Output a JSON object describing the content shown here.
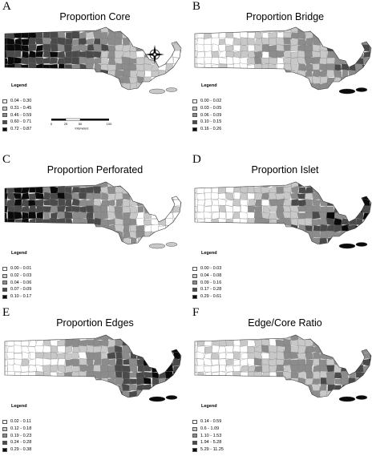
{
  "panels": [
    {
      "letter": "A",
      "title": "Proportion Core",
      "legend_title": "Legend",
      "classes": [
        "0.04 - 0.30",
        "0.31 - 0.45",
        "0.46 - 0.59",
        "0.60 - 0.71",
        "0.72 - 0.87"
      ],
      "pattern": "west-heavy",
      "scale_label": "Kilometers",
      "scale_ticks": [
        "0",
        "25",
        "50",
        "",
        "100"
      ]
    },
    {
      "letter": "B",
      "title": "Proportion Bridge",
      "legend_title": "Legend",
      "classes": [
        "0.00 - 0.02",
        "0.03 - 0.05",
        "0.06 - 0.09",
        "0.10 - 0.15",
        "0.16 - 0.26"
      ],
      "pattern": "east-mid"
    },
    {
      "letter": "C",
      "title": "Proportion Perforated",
      "legend_title": "Legend",
      "classes": [
        "0.00 - 0.01",
        "0.02 - 0.03",
        "0.04 - 0.06",
        "0.07 - 0.09",
        "0.10 - 0.17"
      ],
      "pattern": "west-heavy"
    },
    {
      "letter": "D",
      "title": "Proportion Islet",
      "legend_title": "Legend",
      "classes": [
        "0.00 - 0.03",
        "0.04 - 0.08",
        "0.09 - 0.16",
        "0.17 - 0.28",
        "0.29 - 0.61"
      ],
      "pattern": "east-heavy"
    },
    {
      "letter": "E",
      "title": "Proportion Edges",
      "legend_title": "Legend",
      "classes": [
        "0.02 - 0.11",
        "0.12 - 0.18",
        "0.19 - 0.23",
        "0.24 - 0.28",
        "0.29 - 0.38"
      ],
      "pattern": "east-heavy"
    },
    {
      "letter": "F",
      "title": "Edge/Core Ratio",
      "legend_title": "Legend",
      "classes": [
        "0.14 - 0.59",
        "0.6 - 1.09",
        "1.10 - 1.53",
        "1.94 - 5.28",
        "5.29 - 11.25"
      ],
      "pattern": "east-mid"
    }
  ],
  "colors": [
    "#ffffff",
    "#c8c8c8",
    "#8c8c8c",
    "#4a4a4a",
    "#0a0a0a"
  ],
  "map_legend_key": "choropleth-5-class-grayscale"
}
